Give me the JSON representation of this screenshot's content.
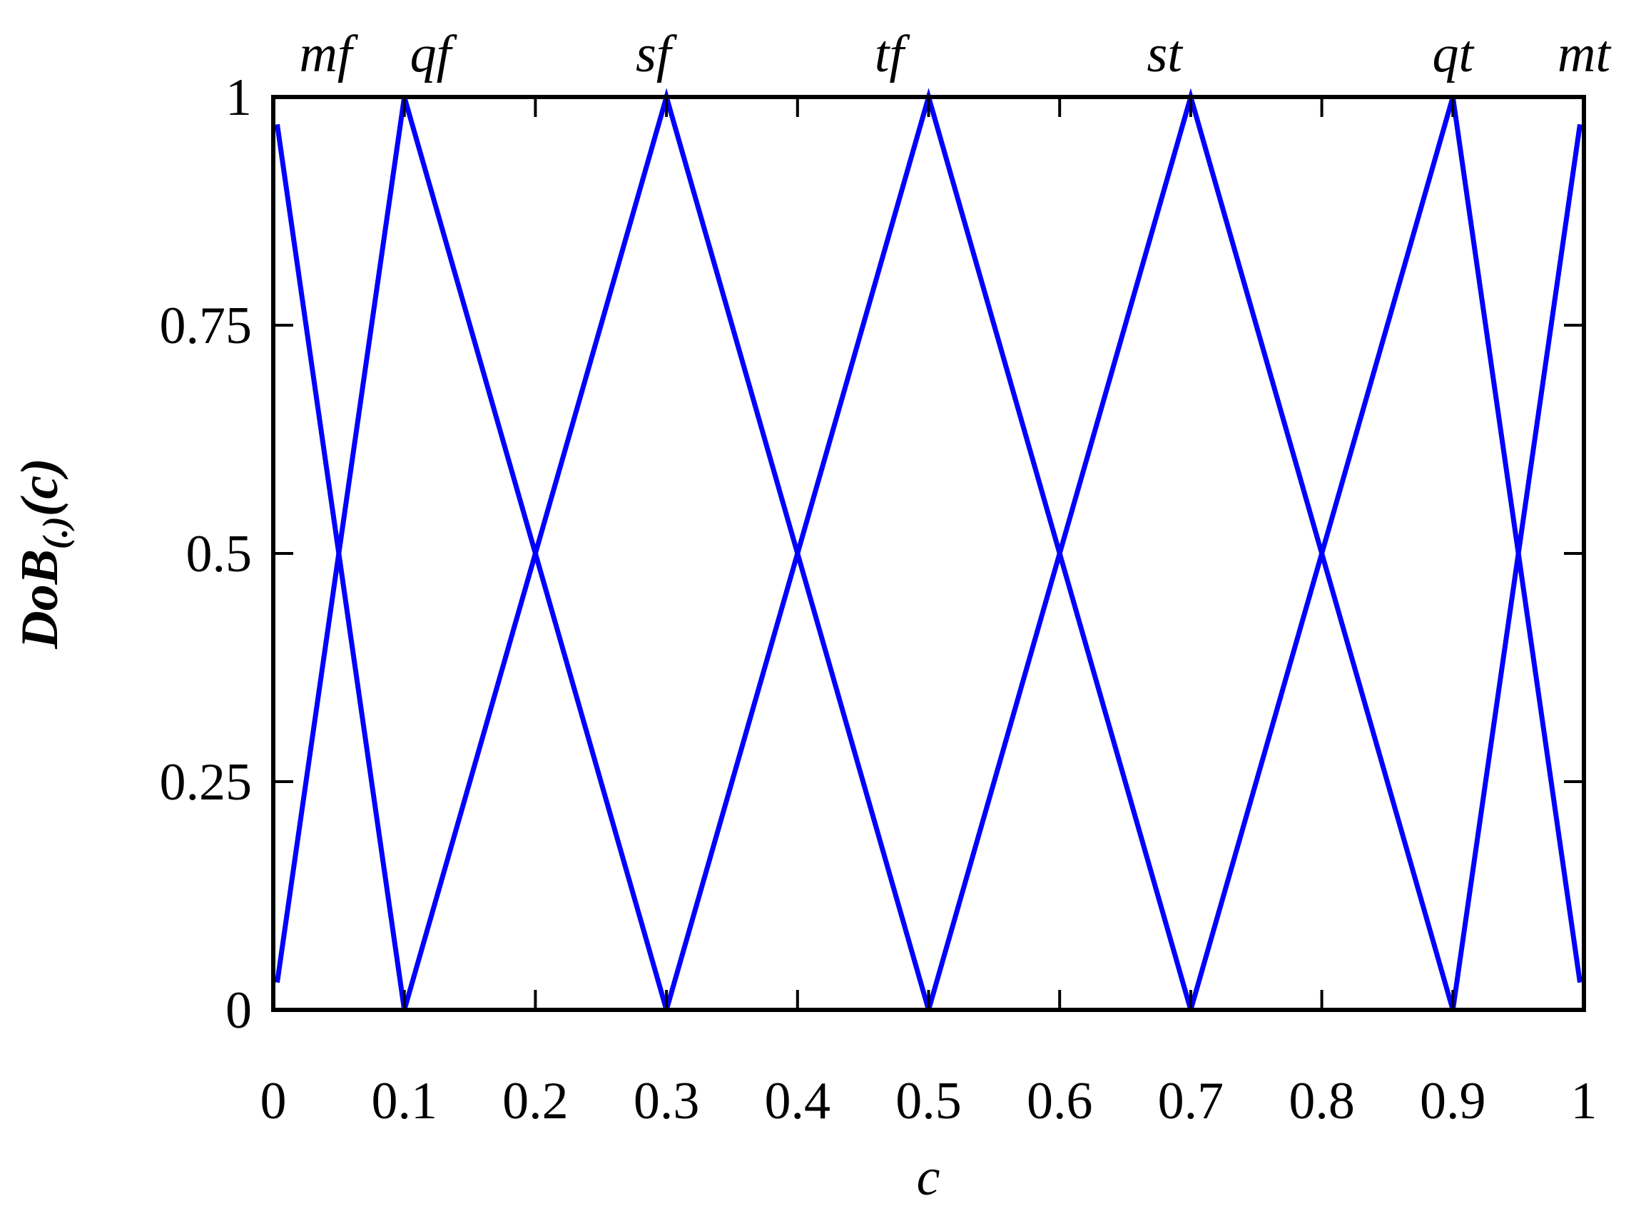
{
  "chart_data": {
    "type": "line",
    "xlabel": "c",
    "ylabel": {
      "main": "DoB",
      "sub": "(.)",
      "arg": "(c)"
    },
    "xlim": [
      0,
      1
    ],
    "ylim": [
      0,
      1
    ],
    "xticks": [
      0,
      0.1,
      0.2,
      0.3,
      0.4,
      0.5,
      0.6,
      0.7,
      0.8,
      0.9,
      1
    ],
    "yticks": [
      0,
      0.25,
      0.5,
      0.75,
      1
    ],
    "x2ticks": [
      {
        "value": 0.04,
        "label": "mf"
      },
      {
        "value": 0.12,
        "label": "qf"
      },
      {
        "value": 0.29,
        "label": "sf"
      },
      {
        "value": 0.47,
        "label": "tf"
      },
      {
        "value": 0.68,
        "label": "st"
      },
      {
        "value": 0.9,
        "label": "qt"
      },
      {
        "value": 1.0,
        "label": "mt"
      }
    ],
    "series": [
      {
        "color": "#0000ff",
        "x": [
          0.003,
          0.1
        ],
        "values": [
          0.97,
          0
        ]
      },
      {
        "color": "#0000ff",
        "x": [
          0.003,
          0.1,
          0.3
        ],
        "values": [
          0.03,
          1,
          0
        ]
      },
      {
        "color": "#0000ff",
        "x": [
          0.1,
          0.3,
          0.5
        ],
        "values": [
          0,
          1,
          0
        ]
      },
      {
        "color": "#0000ff",
        "x": [
          0.3,
          0.5,
          0.7
        ],
        "values": [
          0,
          1,
          0
        ]
      },
      {
        "color": "#0000ff",
        "x": [
          0.5,
          0.7,
          0.9
        ],
        "values": [
          0,
          1,
          0
        ]
      },
      {
        "color": "#0000ff",
        "x": [
          0.7,
          0.9,
          0.997
        ],
        "values": [
          0,
          1,
          0.03
        ]
      },
      {
        "color": "#0000ff",
        "x": [
          0.9,
          0.997
        ],
        "values": [
          0,
          0.97
        ]
      }
    ]
  }
}
